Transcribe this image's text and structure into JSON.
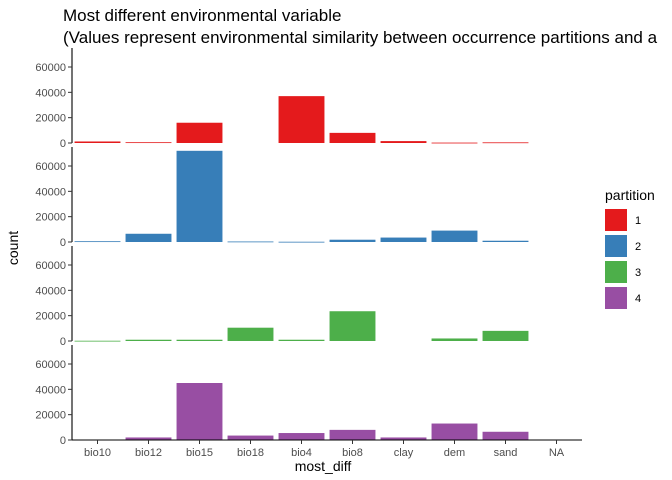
{
  "chart_data": {
    "type": "bar",
    "title": "Most different environmental variable",
    "subtitle": "(Values represent environmental similarity between occurrence partitions and a",
    "xlabel": "most_diff",
    "ylabel": "count",
    "legend_title": "partition",
    "legend_position": "right",
    "grid": false,
    "facets": "stacked-rows",
    "ylim": [
      0,
      75000
    ],
    "yticks": [
      0,
      20000,
      40000,
      60000
    ],
    "categories": [
      "bio10",
      "bio12",
      "bio15",
      "bio18",
      "bio4",
      "bio8",
      "clay",
      "dem",
      "sand",
      "NA"
    ],
    "series": [
      {
        "name": "1",
        "color": "#E41A1C",
        "values": [
          1200,
          600,
          16000,
          0,
          37000,
          8000,
          1500,
          300,
          500,
          0
        ]
      },
      {
        "name": "2",
        "color": "#377EB8",
        "values": [
          600,
          6500,
          72000,
          400,
          200,
          1800,
          3500,
          9000,
          1000,
          0
        ]
      },
      {
        "name": "3",
        "color": "#4DAF4A",
        "values": [
          200,
          1000,
          1000,
          10500,
          1000,
          23500,
          0,
          2000,
          8000,
          0
        ]
      },
      {
        "name": "4",
        "color": "#984EA3",
        "values": [
          0,
          2000,
          45000,
          3500,
          5500,
          8000,
          2000,
          13000,
          6500,
          0
        ]
      }
    ]
  }
}
